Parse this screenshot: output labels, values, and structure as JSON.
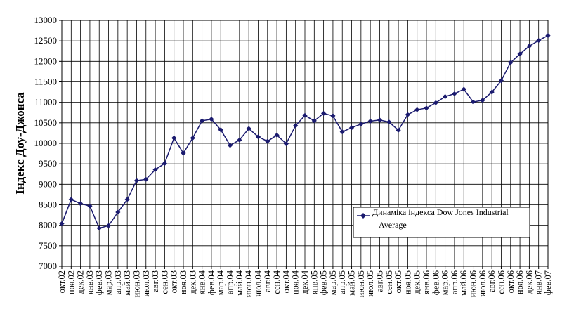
{
  "chart_data": {
    "type": "line",
    "title": "",
    "xlabel": "",
    "ylabel": "Індекс Доу-Джонса",
    "ylim": [
      7000,
      13000
    ],
    "yticks": [
      7000,
      7500,
      8000,
      8500,
      9000,
      9500,
      10000,
      10500,
      11000,
      11500,
      12000,
      12500,
      13000
    ],
    "grid": true,
    "legend_position": "bottom-right",
    "series_color": "#1a1a6e",
    "categories": [
      "окт.02",
      "ноя.02",
      "дек.02",
      "янв.03",
      "фев.03",
      "мар.03",
      "апр.03",
      "май.03",
      "июн.03",
      "июл.03",
      "авг.03",
      "сен.03",
      "окт.03",
      "ноя.03",
      "дек.03",
      "янв.04",
      "фев.04",
      "мар.04",
      "апр.04",
      "май.04",
      "июн.04",
      "июл.04",
      "авг.04",
      "сен.04",
      "окт.04",
      "ноя.04",
      "дек.04",
      "янв.05",
      "фев.05",
      "мар.05",
      "апр.05",
      "май.05",
      "июн.05",
      "июл.05",
      "авг.05",
      "сен.05",
      "окт.05",
      "ноя.05",
      "дек.05",
      "янв.06",
      "фев.06",
      "мар.06",
      "апр.06",
      "май.06",
      "июн.06",
      "июл.06",
      "авг.06",
      "сен.06",
      "окт.06",
      "ноя.06",
      "дек.06",
      "янв.07",
      "фев.07"
    ],
    "series": [
      {
        "name": "Динаміка індекса Dow Jones Industrial Average",
        "values": [
          8040,
          8630,
          8530,
          8470,
          7930,
          7990,
          8320,
          8630,
          9090,
          9120,
          9360,
          9510,
          10130,
          9760,
          10130,
          10550,
          10590,
          10330,
          9950,
          10080,
          10360,
          10160,
          10050,
          10200,
          9990,
          10430,
          10680,
          10550,
          10730,
          10670,
          10280,
          10380,
          10470,
          10540,
          10570,
          10520,
          10320,
          10700,
          10820,
          10860,
          10990,
          11140,
          11210,
          11320,
          11010,
          11050,
          11250,
          11530,
          11970,
          12180,
          12370,
          12510,
          12630
        ]
      }
    ]
  }
}
